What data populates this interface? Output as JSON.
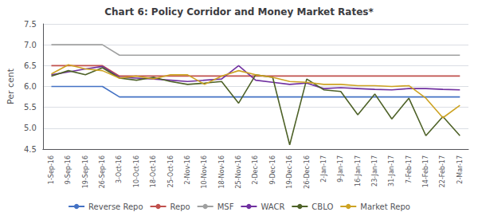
{
  "chart_data": {
    "type": "line",
    "title": "Chart 6: Policy Corridor and Money Market Rates*",
    "ylabel": "Per cent",
    "categories": [
      "1-Sep-16",
      "9-Sep-16",
      "19-Sep-16",
      "26-Sep-16",
      "3-Oct-16",
      "10-Oct-16",
      "18-Oct-16",
      "25-Oct-16",
      "2-Nov-16",
      "10-Nov-16",
      "18-Nov-16",
      "25-Nov-16",
      "2-Dec-16",
      "9-Dec-16",
      "19-Dec-16",
      "26-Dec-16",
      "2-Jan-17",
      "9-Jan-17",
      "16-Jan-17",
      "23-Jan-17",
      "31-Jan-17",
      "7-Feb-17",
      "14-Feb-17",
      "22-Feb-17",
      "2-Mar-17"
    ],
    "series": [
      {
        "name": "Reverse Repo",
        "color": "#4472C4",
        "values": [
          6.0,
          6.0,
          6.0,
          6.0,
          5.75,
          5.75,
          5.75,
          5.75,
          5.75,
          5.75,
          5.75,
          5.75,
          5.75,
          5.75,
          5.75,
          5.75,
          5.75,
          5.75,
          5.75,
          5.75,
          5.75,
          5.75,
          5.75,
          5.75,
          5.75
        ]
      },
      {
        "name": "Repo",
        "color": "#C0504D",
        "values": [
          6.5,
          6.5,
          6.5,
          6.5,
          6.25,
          6.25,
          6.25,
          6.25,
          6.25,
          6.25,
          6.25,
          6.25,
          6.25,
          6.25,
          6.25,
          6.25,
          6.25,
          6.25,
          6.25,
          6.25,
          6.25,
          6.25,
          6.25,
          6.25,
          6.25
        ]
      },
      {
        "name": "MSF",
        "color": "#9FA0A0",
        "values": [
          7.0,
          7.0,
          7.0,
          7.0,
          6.75,
          6.75,
          6.75,
          6.75,
          6.75,
          6.75,
          6.75,
          6.75,
          6.75,
          6.75,
          6.75,
          6.75,
          6.75,
          6.75,
          6.75,
          6.75,
          6.75,
          6.75,
          6.75,
          6.75,
          6.75
        ]
      },
      {
        "name": "WACR",
        "color": "#7030A0",
        "values": [
          6.28,
          6.35,
          6.42,
          6.48,
          6.22,
          6.2,
          6.18,
          6.15,
          6.12,
          6.15,
          6.18,
          6.5,
          6.15,
          6.1,
          6.05,
          6.08,
          5.95,
          5.97,
          5.95,
          5.93,
          5.92,
          5.95,
          5.95,
          5.93,
          5.92
        ]
      },
      {
        "name": "CBLO",
        "color": "#4E6228",
        "values": [
          6.25,
          6.38,
          6.28,
          6.45,
          6.2,
          6.15,
          6.22,
          6.12,
          6.05,
          6.08,
          6.12,
          5.6,
          6.28,
          6.22,
          4.6,
          6.18,
          5.92,
          5.88,
          5.32,
          5.82,
          5.22,
          5.72,
          4.82,
          5.28,
          4.82
        ]
      },
      {
        "name": "Market Repo",
        "color": "#CDA323",
        "values": [
          6.3,
          6.52,
          6.42,
          6.38,
          6.2,
          6.25,
          6.18,
          6.28,
          6.28,
          6.05,
          6.25,
          6.38,
          6.28,
          6.22,
          6.12,
          6.1,
          6.05,
          6.05,
          6.02,
          6.02,
          6.0,
          6.02,
          5.72,
          5.25,
          5.55
        ]
      }
    ],
    "ylim": [
      4.5,
      7.5
    ],
    "yticks": [
      4.5,
      {
        "value": 5,
        "label": "5.0"
      },
      5.5,
      {
        "value": 6,
        "label": "6.0"
      },
      6.5,
      {
        "value": 7,
        "label": "7.0"
      },
      7.5
    ],
    "grid": true,
    "legend": "bottom"
  }
}
